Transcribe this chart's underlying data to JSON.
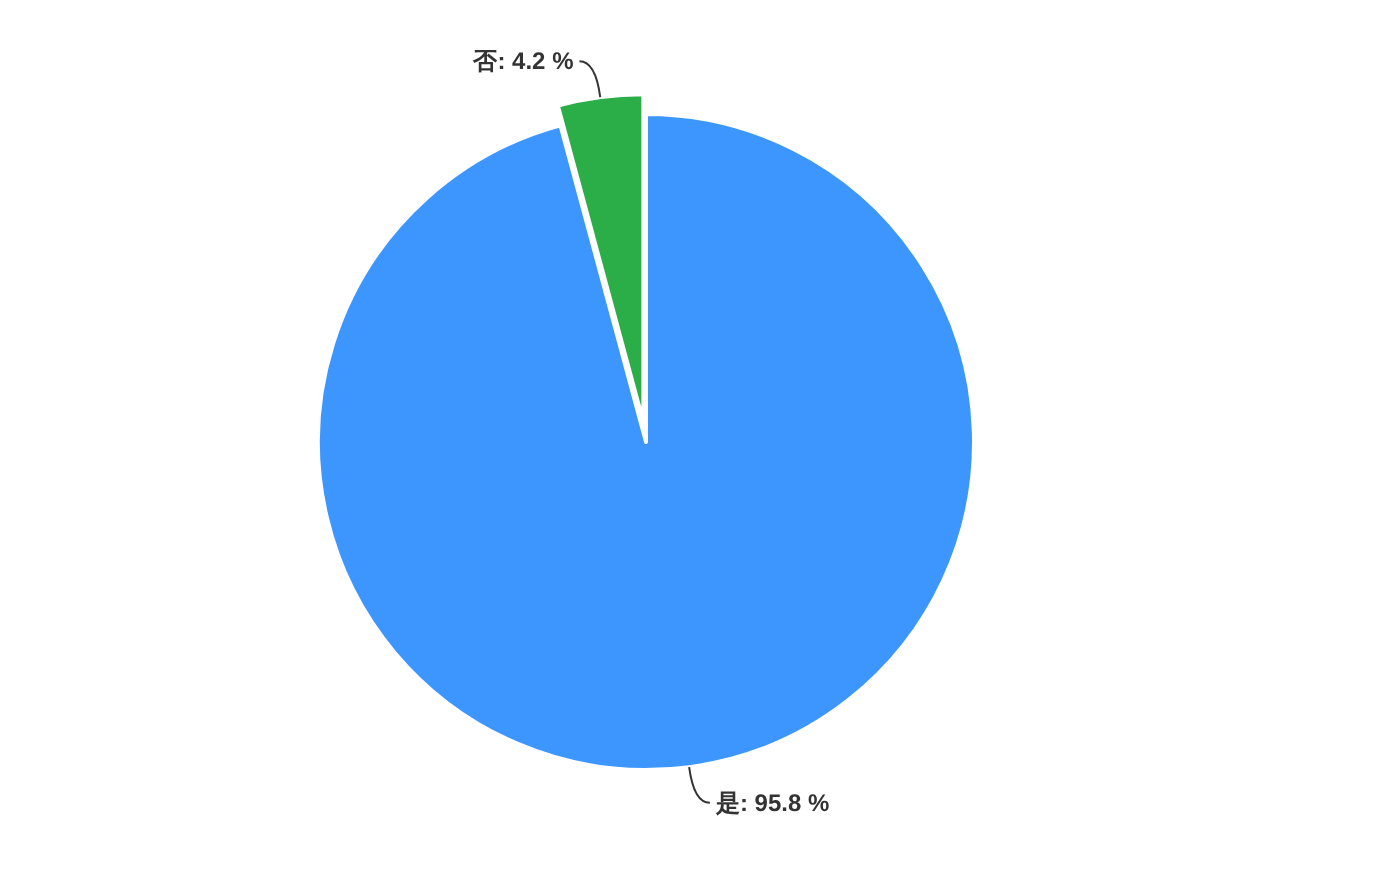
{
  "chart_data": {
    "type": "pie",
    "categories": [
      "是",
      "否"
    ],
    "values": [
      95.8,
      4.2
    ],
    "colors": [
      "#3d96fe",
      "#2bad47"
    ],
    "value_labels": [
      "95.8 %",
      "4.2 %"
    ]
  }
}
